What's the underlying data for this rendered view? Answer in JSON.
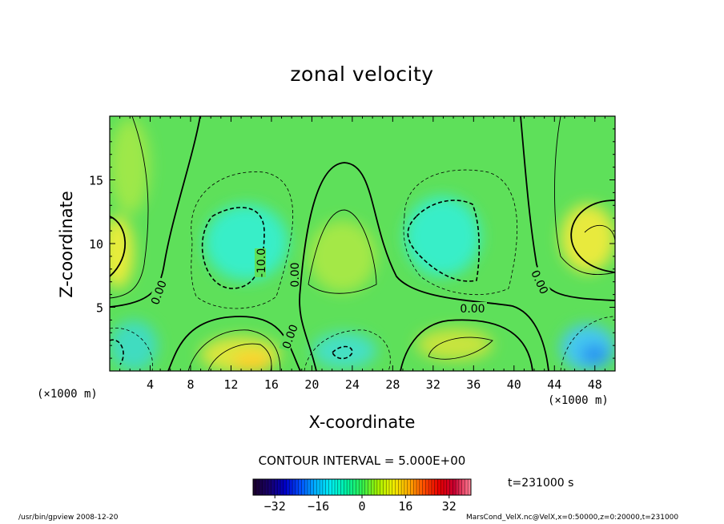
{
  "chart_data": {
    "type": "contour",
    "title": "zonal velocity",
    "xlabel": "X-coordinate",
    "ylabel": "Z-coordinate",
    "x_unit_label": "(×1000 m)",
    "xlim": [
      0,
      50
    ],
    "ylim": [
      0,
      20
    ],
    "x_ticks": [
      4,
      8,
      12,
      16,
      20,
      24,
      28,
      32,
      36,
      40,
      44,
      48
    ],
    "y_ticks": [
      5,
      10,
      15
    ],
    "contour_interval_text": "CONTOUR INTERVAL = 5.000E+00",
    "contour_labels": [
      "0.00",
      "-10.0",
      "0.00",
      "0.00",
      "0.00",
      "0.00"
    ],
    "colorbar": {
      "range": [
        -40,
        40
      ],
      "ticks": [
        -32,
        -16,
        0,
        16,
        32
      ],
      "colors": [
        "#1a0030",
        "#16006e",
        "#0000c8",
        "#0050ff",
        "#00b4ff",
        "#00f0f0",
        "#00f0a0",
        "#30f050",
        "#a0f000",
        "#f0f000",
        "#ffb000",
        "#ff5000",
        "#e80000",
        "#c80030",
        "#ff7890"
      ]
    },
    "time_label": "t=231000 s",
    "footer_left": "/usr/bin/gpview  2008-12-20",
    "footer_right": "MarsCond_VelX.nc@VelX,x=0:50000,z=0:20000,t=231000"
  }
}
